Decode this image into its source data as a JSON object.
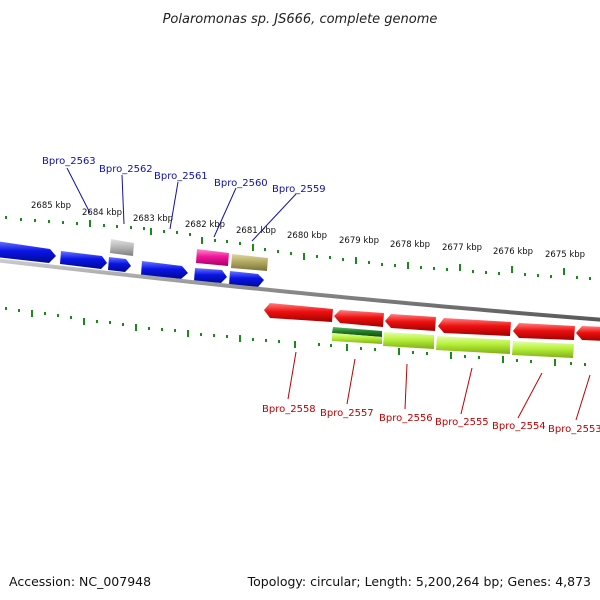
{
  "title": "Polaromonas sp. JS666, complete genome",
  "footer": {
    "accession": "Accession: NC_007948",
    "topology": "Topology: circular; Length: 5,200,264 bp; Genes: 4,873"
  },
  "kbp_labels": [
    "2685 kbp",
    "2684 kbp",
    "2683 kbp",
    "2682 kbp",
    "2681 kbp",
    "2680 kbp",
    "2679 kbp",
    "2678 kbp",
    "2677 kbp",
    "2676 kbp",
    "2675 kbp"
  ],
  "top_gene_labels": [
    "Bpro_2563",
    "Bpro_2562",
    "Bpro_2561",
    "Bpro_2560",
    "Bpro_2559"
  ],
  "bottom_gene_labels": [
    "Bpro_2558",
    "Bpro_2557",
    "Bpro_2556",
    "Bpro_2555",
    "Bpro_2554",
    "Bpro_2553"
  ],
  "colors": {
    "forward_gene": "#0a14e6",
    "reverse_gene": "#ee1010",
    "gray_gene": "#b4b4b4",
    "pink_gene": "#f0159b",
    "olive_gene": "#b3ab64",
    "lime_gene": "#b6f03a",
    "dark_green_gene": "#1f7a28",
    "label_top": "#1010b0",
    "label_bottom": "#c00000",
    "tick": "#1a8a1a",
    "backbone": "#8c8c8c"
  }
}
